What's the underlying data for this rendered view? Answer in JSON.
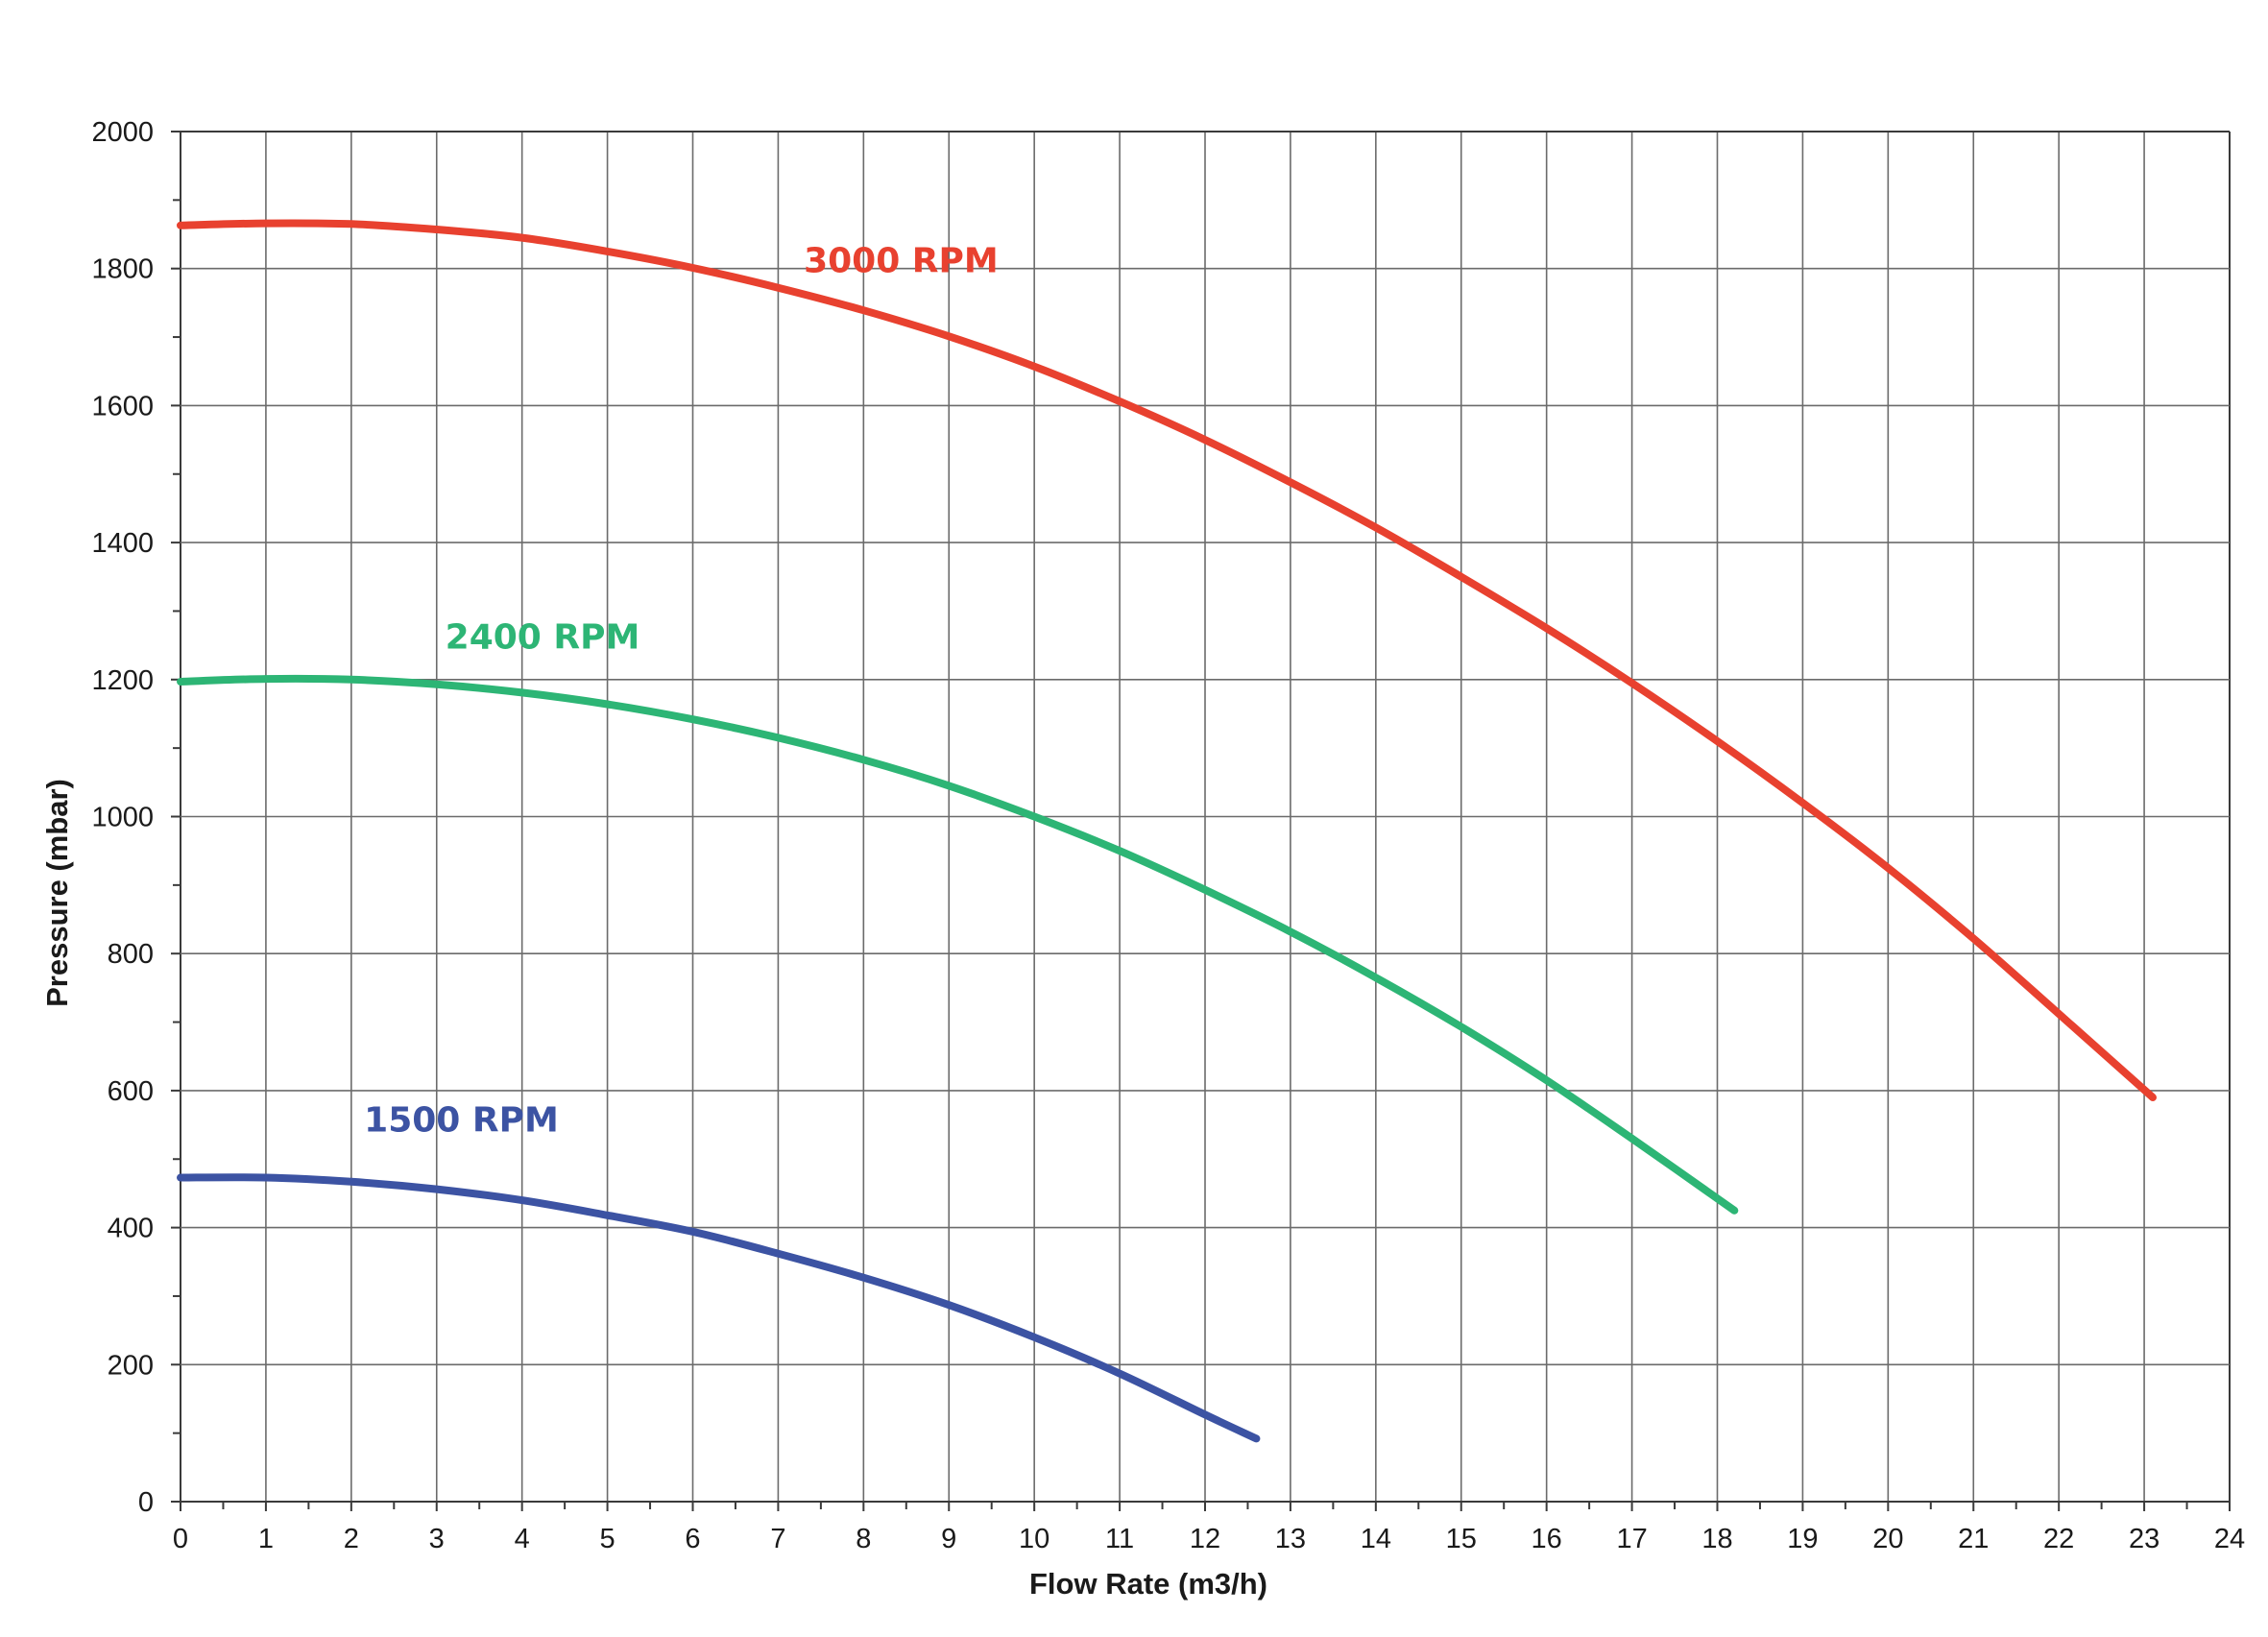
{
  "chart_data": {
    "type": "line",
    "title": "",
    "xlabel": "Flow Rate (m3/h)",
    "ylabel": "Pressure (mbar)",
    "xlim": [
      0,
      24
    ],
    "ylim": [
      0,
      2000
    ],
    "x_ticks": [
      "0",
      "1",
      "2",
      "3",
      "4",
      "5",
      "6",
      "7",
      "8",
      "9",
      "10",
      "11",
      "12",
      "13",
      "14",
      "15",
      "16",
      "17",
      "18",
      "19",
      "20",
      "21",
      "22",
      "23",
      "24"
    ],
    "y_ticks": [
      "0",
      "200",
      "400",
      "600",
      "800",
      "1000",
      "1200",
      "1400",
      "1600",
      "1800",
      "2000"
    ],
    "grid": true,
    "legend": "inline labels",
    "series": [
      {
        "name": "3000 RPM",
        "color": "#e8412f",
        "x": [
          0,
          1,
          2,
          3,
          4,
          5,
          6,
          7,
          8,
          9,
          10,
          11,
          12,
          13,
          14,
          15,
          16,
          17,
          18,
          19,
          20,
          21,
          22,
          23.1
        ],
        "y": [
          1863,
          1866,
          1865,
          1857,
          1845,
          1825,
          1801,
          1772,
          1739,
          1701,
          1657,
          1606,
          1550,
          1488,
          1422,
          1350,
          1275,
          1195,
          1110,
          1020,
          925,
          822,
          712,
          590
        ]
      },
      {
        "name": "2400 RPM",
        "color": "#2db575",
        "x": [
          0,
          1,
          2,
          3,
          4,
          5,
          6,
          7,
          8,
          9,
          10,
          11,
          12,
          13,
          14,
          15,
          16,
          17,
          18.2
        ],
        "y": [
          1197,
          1201,
          1200,
          1193,
          1181,
          1164,
          1142,
          1115,
          1083,
          1045,
          1000,
          950,
          893,
          832,
          765,
          693,
          615,
          530,
          425
        ]
      },
      {
        "name": "1500 RPM",
        "color": "#3c53a3",
        "x": [
          0,
          1,
          2,
          3,
          4,
          5,
          6,
          7,
          8,
          9,
          10,
          11,
          12,
          12.6
        ],
        "y": [
          473,
          473,
          467,
          456,
          440,
          418,
          394,
          362,
          327,
          287,
          240,
          187,
          127,
          92
        ]
      }
    ]
  }
}
